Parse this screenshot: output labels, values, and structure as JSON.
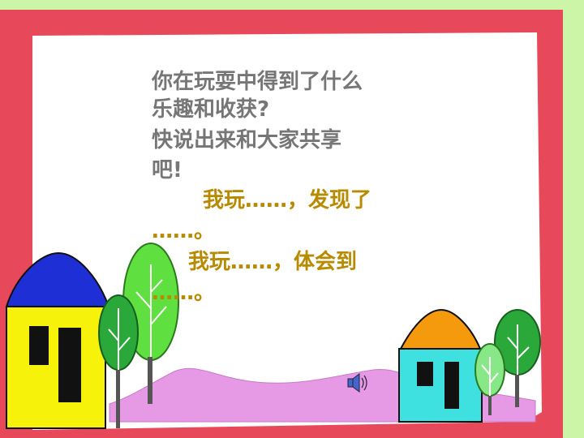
{
  "slide": {
    "question_lines": [
      "你在玩耍中得到了什么",
      "乐趣和收获?",
      "快说出来和大家共享",
      "吧!"
    ],
    "answer_lines": [
      "我玩……，发现了",
      "……。",
      "我玩……，体会到",
      "……。"
    ]
  },
  "colors": {
    "background": "#ccf5a8",
    "frame": "#e8495a",
    "question_text": "#767676",
    "answer_text": "#b88a00",
    "house_left_roof": "#1f2fd6",
    "house_left_wall": "#f6f20a",
    "house_right_roof": "#f59a0c",
    "house_right_wall": "#3ee0e0",
    "tree": "#2aa83a",
    "tree_light": "#5fe040",
    "hill": "#e69ae6"
  },
  "icons": [
    "speaker-icon"
  ]
}
